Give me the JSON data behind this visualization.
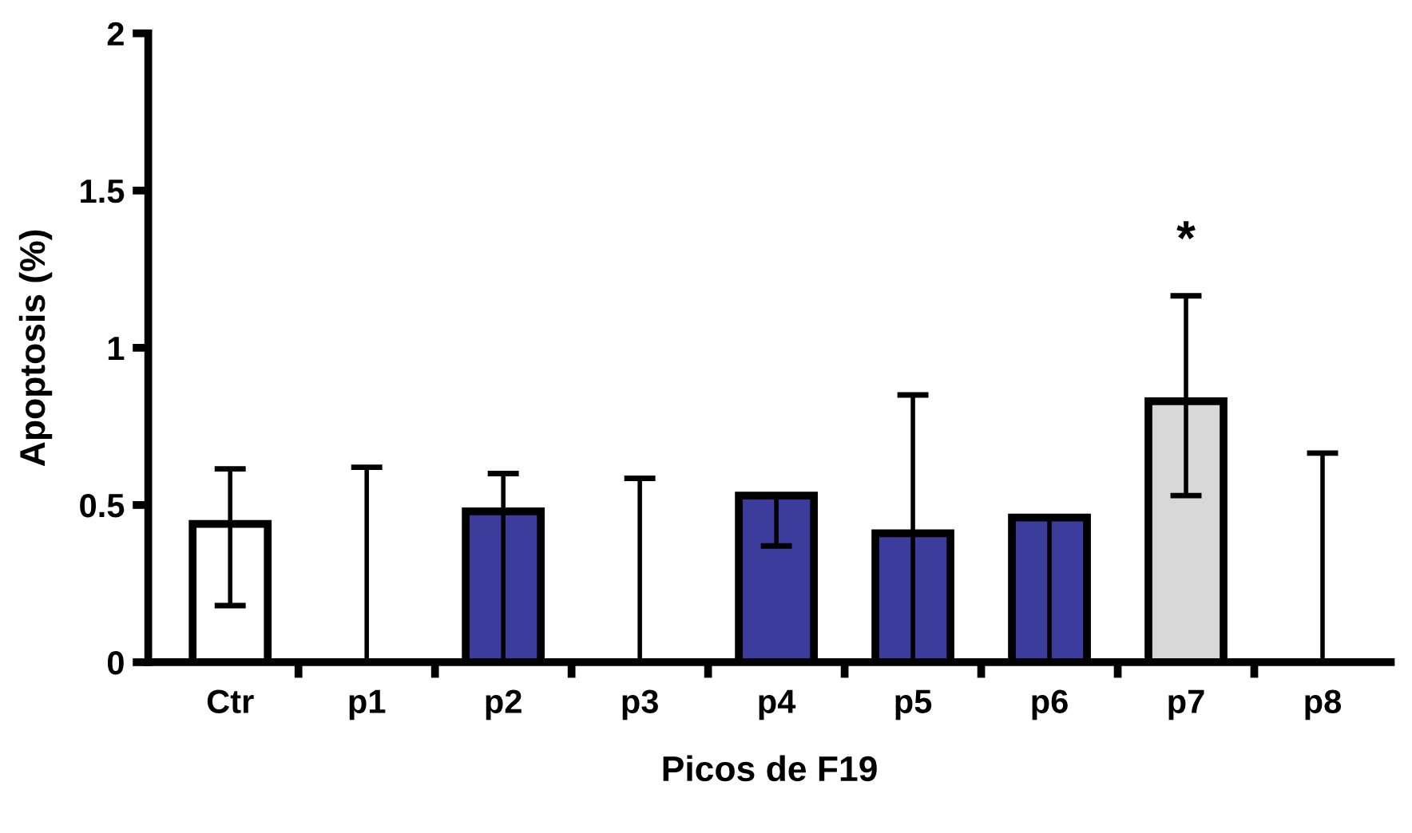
{
  "chart_data": {
    "type": "bar",
    "xlabel": "Picos de F19",
    "ylabel": "Apoptosis (%)",
    "categories": [
      "Ctr",
      "p1",
      "p2",
      "p3",
      "p4",
      "p5",
      "p6",
      "p7",
      "p8"
    ],
    "values": [
      0.44,
      0,
      0.48,
      0,
      0.53,
      0.41,
      0.46,
      0.83,
      0
    ],
    "colors": [
      "#ffffff",
      null,
      "#3c3c9c",
      null,
      "#3c3c9c",
      "#3c3c9c",
      "#3c3c9c",
      "#d8d8d8",
      null
    ],
    "errors": [
      [
        0.18,
        0.615
      ],
      [
        0,
        0.62
      ],
      [
        0,
        0.6
      ],
      [
        0,
        0.585
      ],
      [
        0.37,
        0.53
      ],
      [
        0,
        0.85
      ],
      [
        0,
        0.46
      ],
      [
        0.53,
        1.165
      ],
      [
        0,
        0.665
      ]
    ],
    "ylim": [
      0,
      2
    ],
    "yticks": [
      0,
      0.5,
      1,
      1.5,
      2
    ],
    "annotations": [
      "*"
    ],
    "grid": false
  }
}
